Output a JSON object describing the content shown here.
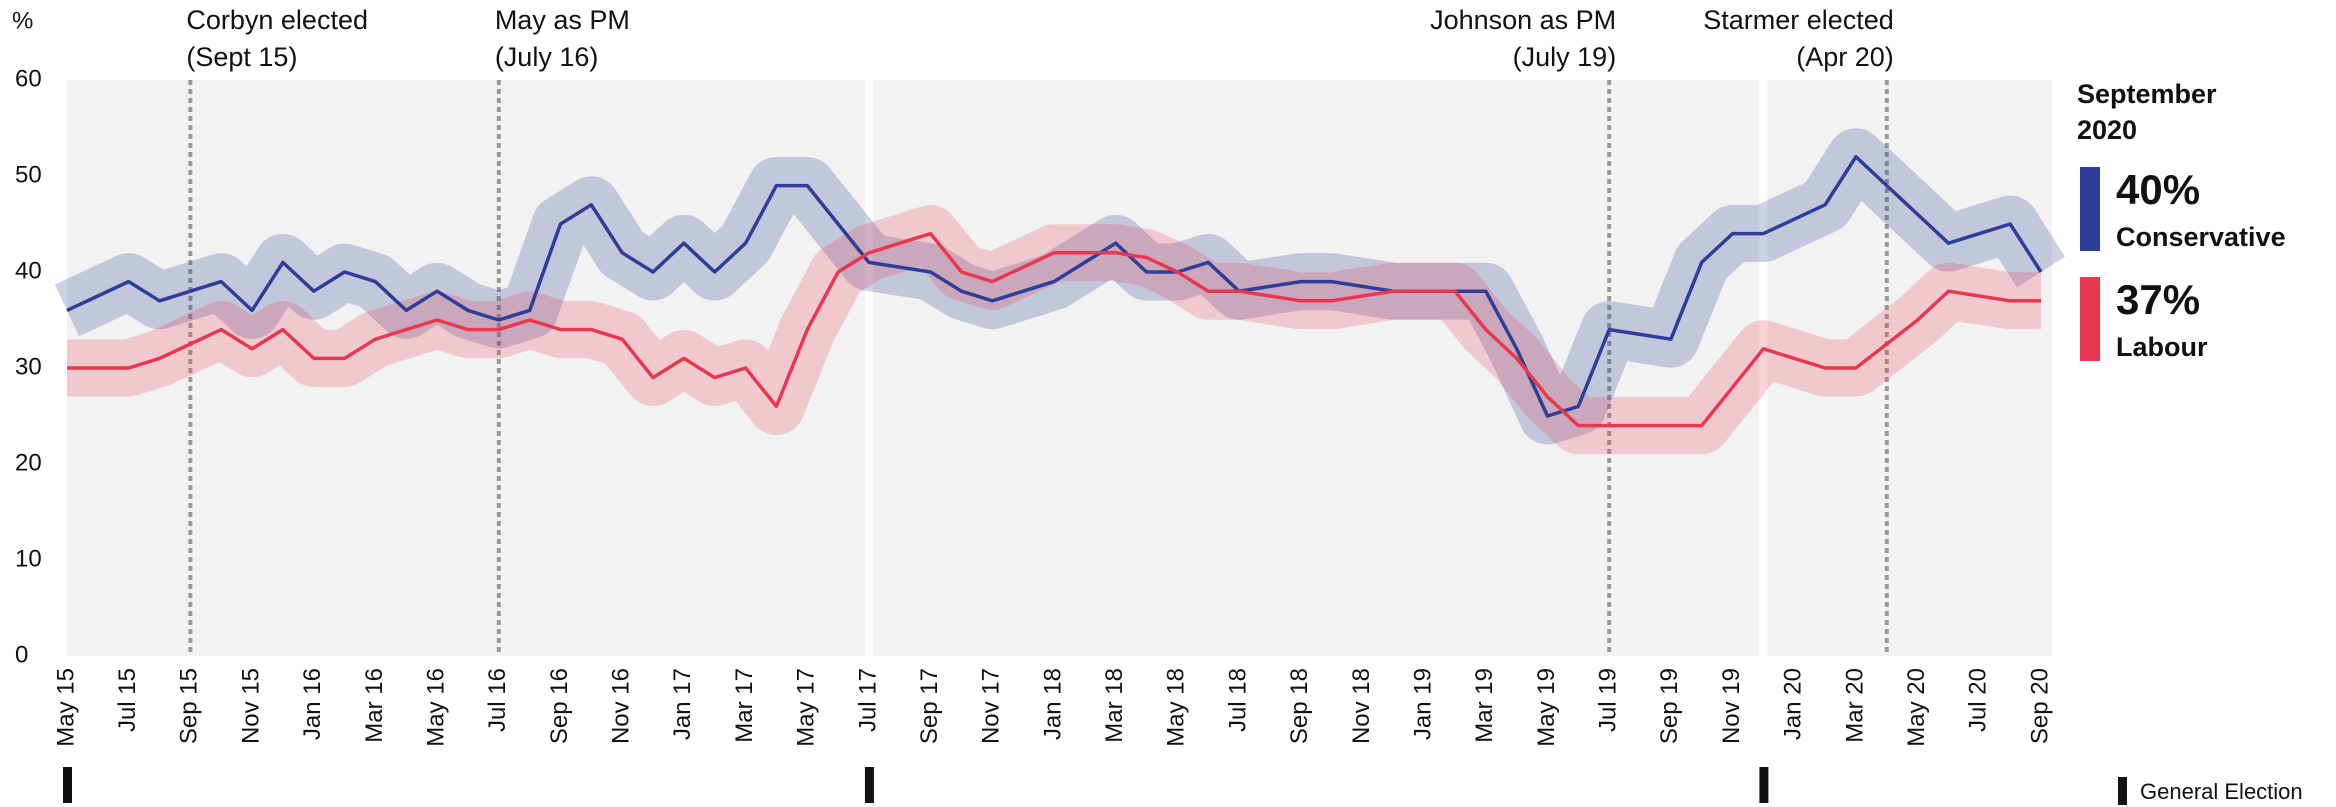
{
  "chart_data": {
    "type": "line",
    "y_label": "%",
    "categories": [
      "May 15",
      null,
      "Jul 15",
      null,
      "Sep 15",
      null,
      "Nov 15",
      null,
      "Jan 16",
      null,
      "Mar 16",
      null,
      "May 16",
      null,
      "Jul 16",
      null,
      "Sep 16",
      null,
      "Nov 16",
      null,
      "Jan 17",
      null,
      "Mar 17",
      null,
      "May 17",
      null,
      "Jul 17",
      null,
      "Sep 17",
      null,
      "Nov 17",
      null,
      "Jan 18",
      null,
      "Mar 18",
      null,
      "May 18",
      null,
      "Jul 18",
      null,
      "Sep 18",
      null,
      "Nov 18",
      null,
      "Jan 19",
      null,
      "Mar 19",
      null,
      "May 19",
      null,
      "Jul 19",
      null,
      "Sep 19",
      null,
      "Nov 19",
      null,
      "Jan 20",
      null,
      "Mar 20",
      null,
      "May 20",
      null,
      "Jul 20",
      null,
      "Sep 20"
    ],
    "series": [
      {
        "name": "Conservative",
        "color": "#2e3e96",
        "band_color": "rgba(46,62,150,0.24)",
        "latest": {
          "value": 40,
          "label": "40%"
        },
        "values": [
          36,
          37.5,
          39,
          37,
          38,
          39,
          36,
          41,
          38,
          40,
          39,
          36,
          38,
          36,
          35,
          36,
          45,
          47,
          42,
          40,
          43,
          40,
          43,
          49,
          49,
          45,
          41,
          40.5,
          40,
          38,
          37,
          38,
          39,
          41,
          43,
          40,
          40,
          41,
          38,
          38.5,
          39,
          39,
          38.5,
          38,
          38,
          38,
          38,
          32,
          25,
          26,
          34,
          33.5,
          33,
          41,
          44,
          44,
          45.5,
          47,
          52,
          49,
          46,
          43,
          44,
          45,
          40
        ]
      },
      {
        "name": "Labour",
        "color": "#e8384f",
        "band_color": "rgba(232,56,79,0.22)",
        "latest": {
          "value": 37,
          "label": "37%"
        },
        "values": [
          30,
          30,
          30,
          31,
          32.5,
          34,
          32,
          34,
          31,
          31,
          33,
          34,
          35,
          34,
          34,
          35,
          34,
          34,
          33,
          29,
          31,
          29,
          30,
          26,
          34,
          40,
          42,
          43,
          44,
          40,
          39,
          40.5,
          42,
          42,
          42,
          41.5,
          40,
          38,
          38,
          37.5,
          37,
          37,
          37.5,
          38,
          38,
          38,
          34,
          31,
          27,
          24,
          24,
          24,
          24,
          24,
          28,
          32,
          31,
          30,
          30,
          32.5,
          35,
          38,
          37.5,
          37,
          37
        ]
      }
    ],
    "ylim": [
      0,
      60
    ],
    "yticks": [
      0,
      10,
      20,
      30,
      40,
      50,
      60
    ],
    "legend_title": "September 2020",
    "annotations": [
      {
        "label": "Corbyn elected",
        "sublabel": "(Sept 15)",
        "x": 4,
        "anchor": "start"
      },
      {
        "label": "May as PM",
        "sublabel": "(July 16)",
        "x": 14,
        "anchor": "start"
      },
      {
        "label": "Johnson as PM",
        "sublabel": "(July 19)",
        "x": 50,
        "anchor": "end"
      },
      {
        "label": "Starmer elected",
        "sublabel": "(Apr 20)",
        "x": 59,
        "anchor": "end"
      }
    ],
    "general_elections": {
      "label": "General Election",
      "x": [
        0,
        26,
        55
      ]
    }
  }
}
